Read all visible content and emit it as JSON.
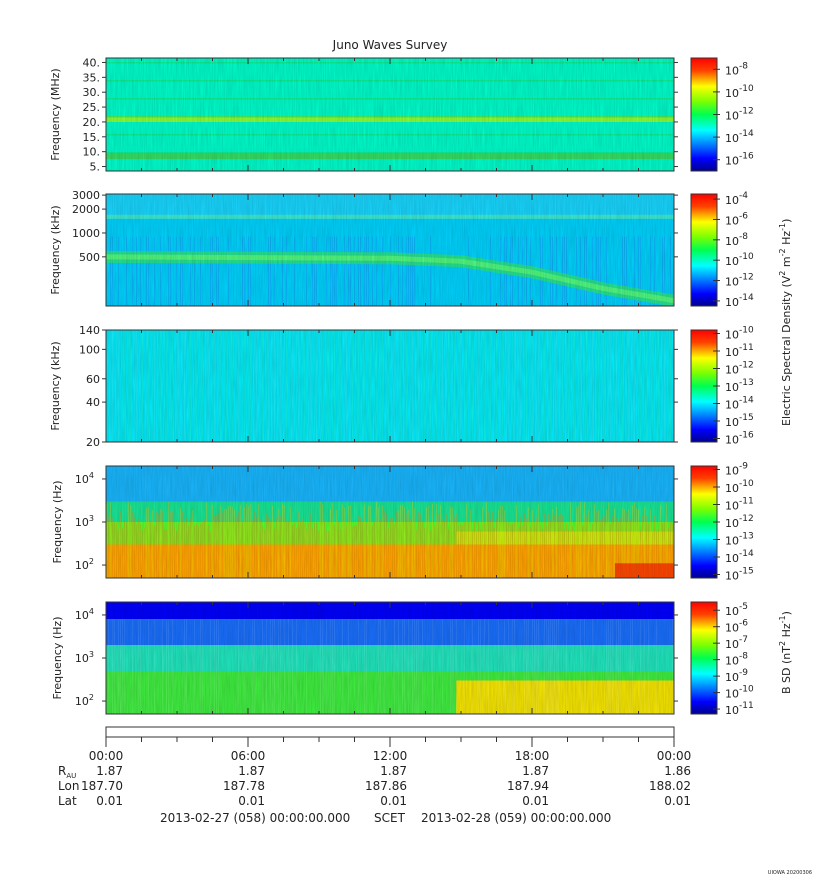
{
  "title": "Juno Waves Survey",
  "watermark": "UIOWA 20200306",
  "chart_data": [
    {
      "type": "heatmap",
      "ylabel": "Frequency (MHz)",
      "y_ticks": [
        "40.",
        "35.",
        "30.",
        "25.",
        "20.",
        "15.",
        "10.",
        "5."
      ],
      "y_tick_values": [
        40,
        35,
        30,
        25,
        20,
        15,
        10,
        5
      ],
      "ylim": [
        3.5,
        41.5
      ],
      "y_scale": "linear",
      "colorbar": {
        "ticks": [
          "10",
          "10",
          "10",
          "10",
          "10"
        ],
        "exponents": [
          "-8",
          "-10",
          "-12",
          "-14",
          "-16"
        ],
        "range": [
          -17,
          -7
        ]
      },
      "features": [
        {
          "kind": "band",
          "freq": 21,
          "level": "yellow-green"
        },
        {
          "kind": "band",
          "freq": 8.5,
          "level": "green"
        }
      ],
      "background_level": -13
    },
    {
      "type": "heatmap",
      "ylabel": "Frequency (kHz)",
      "y_ticks": [
        "3000",
        "2000",
        "1000",
        "500"
      ],
      "y_tick_values": [
        3000,
        2000,
        1000,
        500
      ],
      "ylim": [
        120,
        3100
      ],
      "y_scale": "log",
      "colorbar": {
        "ticks": [
          "10",
          "10",
          "10",
          "10",
          "10",
          "10"
        ],
        "exponents": [
          "-4",
          "-6",
          "-8",
          "-10",
          "-12",
          "-14"
        ],
        "range": [
          -14.5,
          -3.5
        ]
      },
      "features": [
        {
          "kind": "line",
          "freq": 1600,
          "level": "green"
        },
        {
          "kind": "emission",
          "path_hours": [
            0,
            12,
            15,
            18,
            21,
            24
          ],
          "path_freq_khz": [
            500,
            480,
            440,
            320,
            200,
            140
          ],
          "level": "green"
        }
      ],
      "background_level": -11
    },
    {
      "type": "heatmap",
      "ylabel": "Frequency (kHz)",
      "y_ticks": [
        "140",
        "100",
        "60",
        "40",
        "20"
      ],
      "y_tick_values": [
        140,
        100,
        60,
        40,
        20
      ],
      "ylim": [
        20,
        140
      ],
      "y_scale": "log",
      "colorbar": {
        "ticks": [
          "10",
          "10",
          "10",
          "10",
          "10",
          "10",
          "10"
        ],
        "exponents": [
          "-10",
          "-11",
          "-12",
          "-13",
          "-14",
          "-15",
          "-16"
        ],
        "range": [
          -16.2,
          -9.8
        ]
      },
      "features": [],
      "background_level": -14
    },
    {
      "type": "heatmap",
      "ylabel": "Frequency (Hz)",
      "y_ticks": [
        "10",
        "10",
        "10"
      ],
      "y_tick_exponents": [
        "4",
        "3",
        "2"
      ],
      "y_tick_values": [
        10000,
        1000,
        100
      ],
      "ylim": [
        50,
        20000
      ],
      "y_scale": "log",
      "colorbar": {
        "ticks": [
          "10",
          "10",
          "10",
          "10",
          "10",
          "10",
          "10"
        ],
        "exponents": [
          "-9",
          "-10",
          "-11",
          "-12",
          "-13",
          "-14",
          "-15"
        ],
        "range": [
          -15.2,
          -8.8
        ]
      },
      "features": [
        {
          "kind": "low-frequency-intense",
          "below_hz": 300,
          "level": "orange"
        },
        {
          "kind": "step-up",
          "from_hour": 14.8,
          "to_freq_hz": 600
        },
        {
          "kind": "peak",
          "from_hour": 21.5,
          "to_hour": 24,
          "level": "red"
        }
      ],
      "background_level": -13.5
    },
    {
      "type": "heatmap",
      "ylabel": "Frequency (Hz)",
      "y_ticks": [
        "10",
        "10",
        "10"
      ],
      "y_tick_exponents": [
        "4",
        "3",
        "2"
      ],
      "y_tick_values": [
        10000,
        1000,
        100
      ],
      "ylim": [
        50,
        20000
      ],
      "y_scale": "log",
      "colorbar": {
        "ticks": [
          "10",
          "10",
          "10",
          "10",
          "10",
          "10",
          "10"
        ],
        "exponents": [
          "-5",
          "-6",
          "-7",
          "-8",
          "-9",
          "-10",
          "-11"
        ],
        "range": [
          -11.3,
          -4.5
        ]
      },
      "features": [
        {
          "kind": "step-up",
          "from_hour": 14.8,
          "to_level": "yellow"
        }
      ],
      "background_level": -9
    }
  ],
  "colorbar_labels": {
    "electric": "Electric Spectral Density (V",
    "electric_exp1": "2",
    "electric_mid": " m",
    "electric_exp2": "-2",
    "electric_mid2": " Hz",
    "electric_exp3": "-1",
    "electric_end": ")",
    "magnetic": "B SD (nT",
    "magnetic_exp1": "2",
    "magnetic_mid": " Hz",
    "magnetic_exp2": "-1",
    "magnetic_end": ")"
  },
  "time_axis": {
    "ticks": [
      "00:00",
      "06:00",
      "12:00",
      "18:00",
      "00:00"
    ],
    "tick_hours": [
      0,
      6,
      12,
      18,
      24
    ],
    "rows": [
      {
        "label": "R",
        "label_sub": "AU",
        "values": [
          "1.87",
          "1.87",
          "1.87",
          "1.87",
          "1.86"
        ]
      },
      {
        "label": "Lon",
        "values": [
          "187.70",
          "187.78",
          "187.86",
          "187.94",
          "188.02"
        ]
      },
      {
        "label": "Lat",
        "values": [
          "0.01",
          "0.01",
          "0.01",
          "0.01",
          "0.01"
        ]
      }
    ],
    "footer_left": "2013-02-27 (058) 00:00:00.000",
    "footer_mid": "SCET",
    "footer_right": "2013-02-28 (059) 00:00:00.000"
  }
}
